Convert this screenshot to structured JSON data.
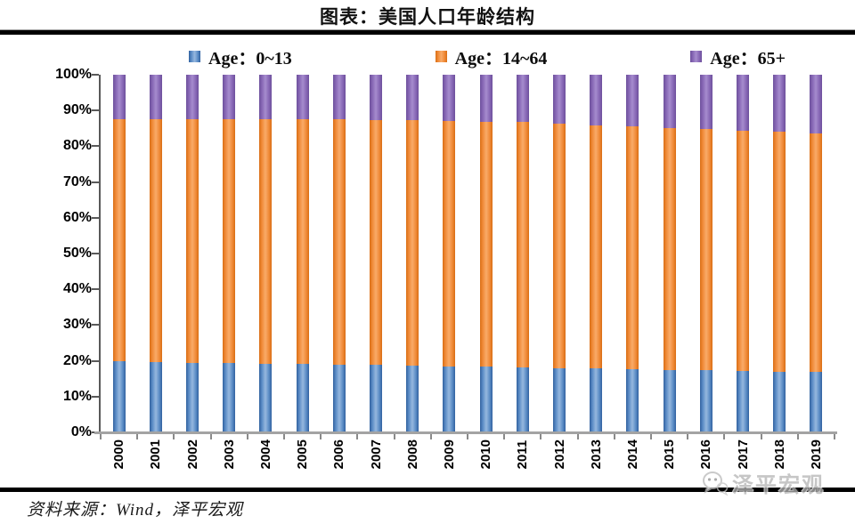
{
  "title": "图表：美国人口年龄结构",
  "legend": {
    "items": [
      {
        "label": "Age：0~13",
        "color": "#4f81bd"
      },
      {
        "label": "Age：14~64",
        "color": "#f07f2d"
      },
      {
        "label": "Age：65+",
        "color": "#8064a2"
      }
    ]
  },
  "chart_data": {
    "type": "bar",
    "stacked": true,
    "unit": "%",
    "categories": [
      "2000",
      "2001",
      "2002",
      "2003",
      "2004",
      "2005",
      "2006",
      "2007",
      "2008",
      "2009",
      "2010",
      "2011",
      "2012",
      "2013",
      "2014",
      "2015",
      "2016",
      "2017",
      "2018",
      "2019"
    ],
    "series": [
      {
        "name": "Age：0~13",
        "color": "#4f81bd",
        "values": [
          19.8,
          19.7,
          19.5,
          19.4,
          19.2,
          19.1,
          18.9,
          18.8,
          18.7,
          18.5,
          18.3,
          18.2,
          18.0,
          17.8,
          17.7,
          17.5,
          17.3,
          17.2,
          17.0,
          16.9
        ]
      },
      {
        "name": "Age：14~64",
        "color": "#f07f2d",
        "values": [
          67.8,
          67.9,
          68.1,
          68.2,
          68.4,
          68.5,
          68.6,
          68.6,
          68.6,
          68.6,
          68.6,
          68.5,
          68.3,
          68.1,
          67.8,
          67.6,
          67.5,
          67.2,
          67.0,
          66.8
        ]
      },
      {
        "name": "Age：65+",
        "color": "#8064a2",
        "values": [
          12.4,
          12.4,
          12.4,
          12.4,
          12.4,
          12.4,
          12.5,
          12.6,
          12.7,
          12.9,
          13.1,
          13.3,
          13.7,
          14.1,
          14.5,
          14.9,
          15.2,
          15.6,
          16.0,
          16.3
        ]
      }
    ],
    "ylim": [
      0,
      100
    ],
    "y_tick_labels_top_to_bottom": [
      "100%",
      "90%",
      "80%",
      "70%",
      "60%",
      "50%",
      "40%",
      "30%",
      "20%",
      "10%",
      "0%"
    ],
    "grid": false,
    "legend_position": "top"
  },
  "footer": {
    "source": "资料来源：Wind，泽平宏观"
  },
  "watermark": {
    "text": "泽平宏观"
  },
  "colors": {
    "axis": "#595959",
    "x_axis": "#a3a3a3",
    "rule": "#000000"
  }
}
